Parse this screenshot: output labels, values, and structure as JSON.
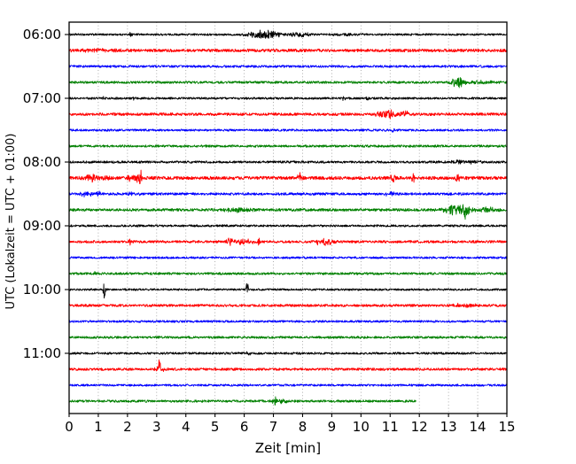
{
  "chart_data": {
    "type": "line",
    "title": "",
    "xlabel": "Zeit  [min]",
    "ylabel": "UTC (Lokalzeit = UTC + 01:00)",
    "xlim": [
      0,
      15
    ],
    "x_ticks": [
      "0",
      "1",
      "2",
      "3",
      "4",
      "5",
      "6",
      "7",
      "8",
      "9",
      "10",
      "11",
      "12",
      "13",
      "14",
      "15"
    ],
    "y_ticks": [
      "06:00",
      "07:00",
      "08:00",
      "09:00",
      "10:00",
      "11:00"
    ],
    "grid": "vertical-dotted",
    "legend": "none",
    "minutes_per_row": 15,
    "rows_per_hour": 4,
    "color_cycle": [
      "#000000",
      "#ff0000",
      "#0000ff",
      "#008000"
    ],
    "traces": [
      {
        "start_time": "06:00",
        "color": "#000000",
        "xstart": 0,
        "xend": 15,
        "noise": 1.1,
        "events": [
          {
            "t": 6.7,
            "dur": 1.6,
            "amp": 4.5
          },
          {
            "t": 7.9,
            "dur": 1.2,
            "amp": 2.0
          },
          {
            "t": 2.1,
            "dur": 0.15,
            "amp": 2.0
          },
          {
            "t": 9.5,
            "dur": 1.5,
            "amp": 1.2
          }
        ]
      },
      {
        "start_time": "06:15",
        "color": "#ff0000",
        "xstart": 0,
        "xend": 15,
        "noise": 1.7,
        "events": [
          {
            "t": 1.0,
            "dur": 2.0,
            "amp": 1.5
          }
        ]
      },
      {
        "start_time": "06:30",
        "color": "#0000ff",
        "xstart": 0,
        "xend": 15,
        "noise": 1.3,
        "events": []
      },
      {
        "start_time": "06:45",
        "color": "#008000",
        "xstart": 0,
        "xend": 15,
        "noise": 1.3,
        "events": [
          {
            "t": 13.3,
            "dur": 0.7,
            "amp": 5.5
          },
          {
            "t": 14.0,
            "dur": 1.4,
            "amp": 2.0
          }
        ]
      },
      {
        "start_time": "07:00",
        "color": "#000000",
        "xstart": 0,
        "xend": 15,
        "noise": 1.2,
        "events": [
          {
            "t": 9.4,
            "dur": 0.15,
            "amp": 3.0
          },
          {
            "t": 10.2,
            "dur": 0.15,
            "amp": 3.0
          },
          {
            "t": 1.2,
            "dur": 0.1,
            "amp": 2.0
          },
          {
            "t": 2.2,
            "dur": 0.1,
            "amp": 2.0
          }
        ]
      },
      {
        "start_time": "07:15",
        "color": "#ff0000",
        "xstart": 0,
        "xend": 15,
        "noise": 1.5,
        "events": [
          {
            "t": 10.9,
            "dur": 0.9,
            "amp": 6.0
          },
          {
            "t": 11.5,
            "dur": 0.9,
            "amp": 3.0
          }
        ]
      },
      {
        "start_time": "07:30",
        "color": "#0000ff",
        "xstart": 0,
        "xend": 15,
        "noise": 1.2,
        "events": [
          {
            "t": 11.1,
            "dur": 0.3,
            "amp": 1.8
          }
        ]
      },
      {
        "start_time": "07:45",
        "color": "#008000",
        "xstart": 0,
        "xend": 15,
        "noise": 1.3,
        "events": []
      },
      {
        "start_time": "08:00",
        "color": "#000000",
        "xstart": 0,
        "xend": 15,
        "noise": 1.3,
        "events": [
          {
            "t": 13.6,
            "dur": 1.6,
            "amp": 1.8
          }
        ]
      },
      {
        "start_time": "08:15",
        "color": "#ff0000",
        "xstart": 0,
        "xend": 15,
        "noise": 1.8,
        "events": [
          {
            "t": 0.8,
            "dur": 0.8,
            "amp": 4.0
          },
          {
            "t": 1.3,
            "dur": 0.2,
            "amp": 3.5
          },
          {
            "t": 2.05,
            "dur": 0.15,
            "amp": 5.0
          },
          {
            "t": 2.45,
            "dur": 0.15,
            "amp": 11.0
          },
          {
            "t": 2.3,
            "dur": 0.5,
            "amp": 4.0
          },
          {
            "t": 7.9,
            "dur": 0.2,
            "amp": 5.0
          },
          {
            "t": 11.1,
            "dur": 0.2,
            "amp": 6.0
          },
          {
            "t": 11.8,
            "dur": 0.2,
            "amp": 4.0
          },
          {
            "t": 13.3,
            "dur": 0.3,
            "amp": 3.5
          }
        ]
      },
      {
        "start_time": "08:30",
        "color": "#0000ff",
        "xstart": 0,
        "xend": 15,
        "noise": 1.4,
        "events": [
          {
            "t": 0.6,
            "dur": 0.7,
            "amp": 2.5
          },
          {
            "t": 1.0,
            "dur": 0.2,
            "amp": 3.0
          },
          {
            "t": 2.1,
            "dur": 0.2,
            "amp": 3.0
          },
          {
            "t": 2.4,
            "dur": 0.15,
            "amp": 3.0
          },
          {
            "t": 11.0,
            "dur": 0.7,
            "amp": 1.6
          }
        ]
      },
      {
        "start_time": "08:45",
        "color": "#008000",
        "xstart": 0,
        "xend": 15,
        "noise": 1.5,
        "events": [
          {
            "t": 5.8,
            "dur": 1.6,
            "amp": 2.0
          },
          {
            "t": 13.3,
            "dur": 1.3,
            "amp": 5.5
          },
          {
            "t": 13.55,
            "dur": 0.3,
            "amp": 8.0
          },
          {
            "t": 14.4,
            "dur": 0.9,
            "amp": 2.5
          }
        ]
      },
      {
        "start_time": "09:00",
        "color": "#000000",
        "xstart": 0,
        "xend": 15,
        "noise": 1.2,
        "events": []
      },
      {
        "start_time": "09:15",
        "color": "#ff0000",
        "xstart": 0,
        "xend": 15,
        "noise": 1.4,
        "events": [
          {
            "t": 2.1,
            "dur": 0.15,
            "amp": 4.0
          },
          {
            "t": 5.5,
            "dur": 0.3,
            "amp": 4.0
          },
          {
            "t": 6.0,
            "dur": 0.9,
            "amp": 3.0
          },
          {
            "t": 6.5,
            "dur": 0.2,
            "amp": 4.0
          },
          {
            "t": 8.8,
            "dur": 0.7,
            "amp": 3.5
          },
          {
            "t": 8.5,
            "dur": 0.15,
            "amp": 4.0
          }
        ]
      },
      {
        "start_time": "09:30",
        "color": "#0000ff",
        "xstart": 0,
        "xend": 15,
        "noise": 1.2,
        "events": []
      },
      {
        "start_time": "09:45",
        "color": "#008000",
        "xstart": 0,
        "xend": 15,
        "noise": 1.3,
        "events": [
          {
            "t": 0.85,
            "dur": 0.15,
            "amp": 3.0
          }
        ]
      },
      {
        "start_time": "10:00",
        "color": "#000000",
        "xstart": 0,
        "xend": 15,
        "noise": 1.1,
        "events": [
          {
            "t": 1.2,
            "dur": 0.12,
            "amp": 9.0
          },
          {
            "t": 6.1,
            "dur": 0.12,
            "amp": 11.0
          }
        ]
      },
      {
        "start_time": "10:15",
        "color": "#ff0000",
        "xstart": 0,
        "xend": 15,
        "noise": 1.4,
        "events": [
          {
            "t": 13.5,
            "dur": 1.2,
            "amp": 1.8
          }
        ]
      },
      {
        "start_time": "10:30",
        "color": "#0000ff",
        "xstart": 0,
        "xend": 15,
        "noise": 1.2,
        "events": []
      },
      {
        "start_time": "10:45",
        "color": "#008000",
        "xstart": 0,
        "xend": 15,
        "noise": 1.3,
        "events": []
      },
      {
        "start_time": "11:00",
        "color": "#000000",
        "xstart": 0,
        "xend": 15,
        "noise": 1.2,
        "events": [
          {
            "t": 6.15,
            "dur": 0.2,
            "amp": 2.5
          }
        ]
      },
      {
        "start_time": "11:15",
        "color": "#ff0000",
        "xstart": 0,
        "xend": 15,
        "noise": 1.4,
        "events": [
          {
            "t": 3.1,
            "dur": 0.15,
            "amp": 11.0
          },
          {
            "t": 3.1,
            "dur": 0.5,
            "amp": 3.0
          }
        ]
      },
      {
        "start_time": "11:30",
        "color": "#0000ff",
        "xstart": 0,
        "xend": 15,
        "noise": 1.2,
        "events": []
      },
      {
        "start_time": "11:45",
        "color": "#008000",
        "xstart": 0,
        "xend": 11.9,
        "noise": 1.3,
        "events": [
          {
            "t": 7.05,
            "dur": 0.25,
            "amp": 5.0
          },
          {
            "t": 7.3,
            "dur": 0.5,
            "amp": 2.0
          }
        ]
      }
    ]
  },
  "style_colors": {
    "axis": "#000000",
    "grid": "#999999",
    "background": "#ffffff"
  }
}
